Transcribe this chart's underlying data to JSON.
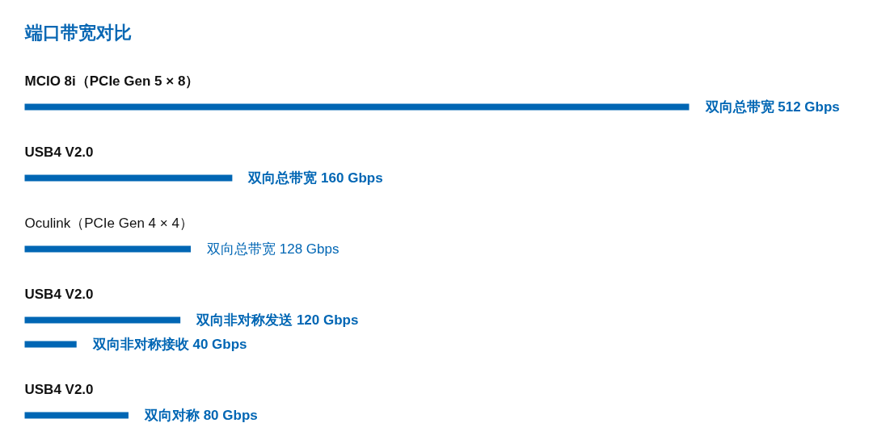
{
  "chart_data": {
    "type": "bar",
    "orientation": "horizontal",
    "title": "端口带宽对比",
    "categories": [
      "MCIO 8i（PCIe Gen 5 × 8）",
      "USB4 V2.0",
      "Oculink（PCIe Gen 4 × 4）",
      "USB4 V2.0",
      "USB4 V2.0"
    ],
    "series": [
      {
        "color": "#0066b4",
        "values": [
          512,
          160,
          128,
          120,
          80
        ],
        "value_labels": [
          "双向总带宽 512 Gbps",
          "双向总带宽 160 Gbps",
          "双向总带宽 128 Gbps",
          "双向非对称发送 120 Gbps",
          "双向对称 80 Gbps"
        ]
      },
      {
        "color": "#0066b4",
        "values": [
          null,
          null,
          null,
          40,
          null
        ],
        "value_labels": [
          null,
          null,
          null,
          "双向非对称接收 40 Gbps",
          null
        ]
      }
    ]
  }
}
